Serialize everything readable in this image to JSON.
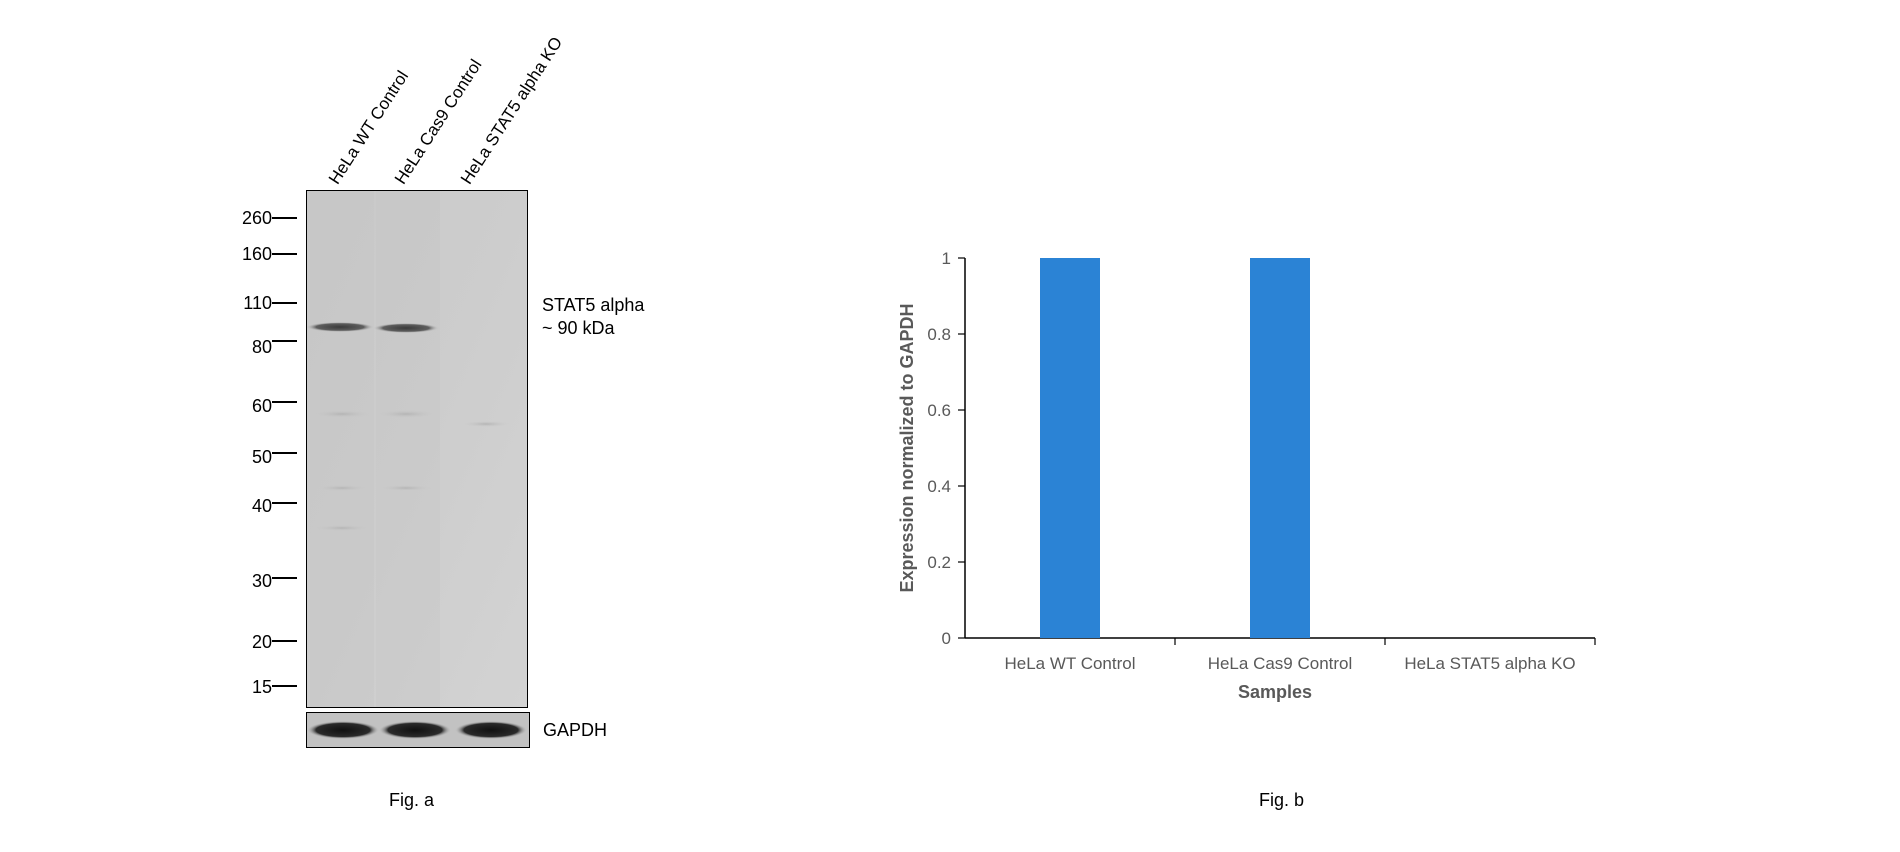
{
  "fig_a": {
    "lane_labels": [
      "HeLa WT Control",
      "HeLa Cas9 Control",
      "HeLa STAT5 alpha KO"
    ],
    "markers": [
      "260",
      "160",
      "110",
      "80",
      "60",
      "50",
      "40",
      "30",
      "20",
      "15"
    ],
    "band_label_line1": "STAT5 alpha",
    "band_label_line2": "~ 90 kDa",
    "loading_control_label": "GAPDH",
    "caption": "Fig. a"
  },
  "fig_b": {
    "caption": "Fig. b"
  },
  "chart_data": {
    "type": "bar",
    "categories": [
      "HeLa WT Control",
      "HeLa Cas9 Control",
      "HeLa STAT5 alpha KO"
    ],
    "values": [
      1,
      1,
      0
    ],
    "xlabel": "Samples",
    "ylabel": "Expression normalized to GAPDH",
    "ylim": [
      0,
      1
    ],
    "yticks": [
      "0",
      "0.2",
      "0.4",
      "0.6",
      "0.8",
      "1"
    ],
    "ytick_values": [
      0,
      0.2,
      0.4,
      0.6,
      0.8,
      1
    ],
    "grid": false,
    "bar_color": "#2b83d5"
  }
}
